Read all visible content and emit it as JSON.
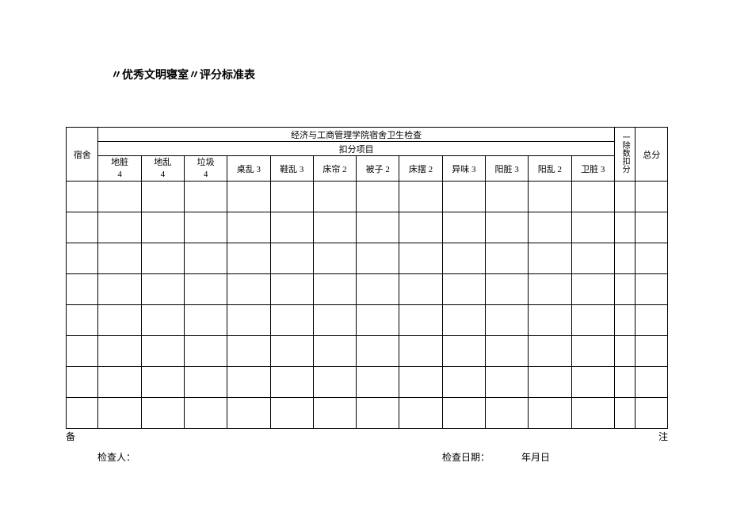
{
  "title": "〃优秀文明寝室〃评分标准表",
  "table": {
    "header_main": "经济与工商管理学院宿舍卫生检查",
    "col_dorm": "宿舍",
    "header_sub": "扣分项目",
    "header_deduction": "一除数扣分",
    "header_total": "总分",
    "columns": [
      {
        "line1": "地脏",
        "line2": "4"
      },
      {
        "line1": "地乱",
        "line2": "4"
      },
      {
        "line1": "垃圾",
        "line2": "4"
      },
      {
        "single": "桌乱 3"
      },
      {
        "single": "鞋乱 3"
      },
      {
        "single": "床帘 2"
      },
      {
        "single": "被子 2"
      },
      {
        "single": "床摆 2"
      },
      {
        "single": "异味 3"
      },
      {
        "single": "阳脏 3"
      },
      {
        "single": "阳乱 2"
      },
      {
        "single": "卫脏 3"
      }
    ],
    "data_rows": 8
  },
  "footer": {
    "note_left": "备",
    "note_right": "注",
    "inspector_label": "检查人：",
    "date_label": "检查日期：",
    "date_value": "年月日"
  }
}
